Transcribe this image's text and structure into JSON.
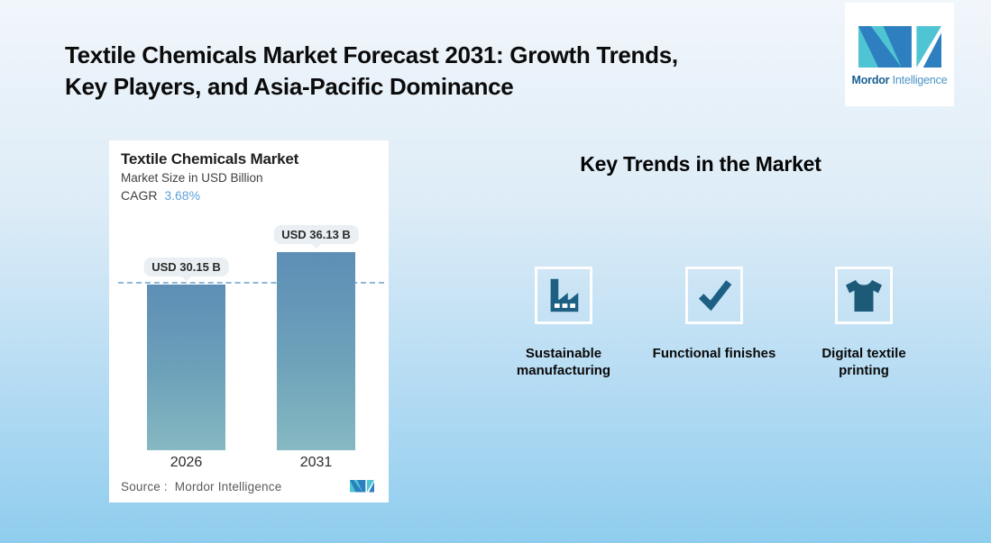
{
  "header": {
    "title": "Textile Chemicals Market Forecast 2031: Growth Trends,\nKey Players, and Asia-Pacific Dominance"
  },
  "brand": {
    "name_bold": "Mordor",
    "name_light": "Intelligence"
  },
  "chart_card": {
    "title": "Textile Chemicals Market",
    "subtitle": "Market Size in USD Billion",
    "cagr_label": "CAGR",
    "cagr_value": "3.68%",
    "source_label": "Source :",
    "source_value": "Mordor Intelligence"
  },
  "chart_data": {
    "type": "bar",
    "title": "Textile Chemicals Market",
    "ylabel": "Market Size in USD Billion",
    "cagr_percent": 3.68,
    "categories": [
      "2026",
      "2031"
    ],
    "values": [
      30.15,
      36.13
    ],
    "value_labels": [
      "USD 30.15 B",
      "USD 36.13 B"
    ],
    "ylim": [
      0,
      40
    ],
    "grid": false,
    "legend": false,
    "annotations": [
      {
        "type": "dashed-reference-line",
        "y": 30.15
      }
    ],
    "source": "Mordor Intelligence"
  },
  "trends": {
    "heading": "Key Trends in the Market",
    "items": [
      {
        "icon": "factory-icon",
        "label": "Sustainable\nmanufacturing"
      },
      {
        "icon": "checkmark-icon",
        "label": "Functional finishes"
      },
      {
        "icon": "tshirt-icon",
        "label": "Digital textile\nprinting"
      }
    ]
  },
  "colors": {
    "background_top": "#f1f6fb",
    "background_bottom": "#8fcdee",
    "bar_top": "#5d8eb5",
    "bar_bottom": "#86b9c1",
    "dashed_line": "#8fb7d7",
    "cagr_accent": "#5ea3d8",
    "icon_dark": "#1d6084",
    "logo_blue": "#2d7fc0",
    "logo_teal": "#4fc4d2"
  }
}
